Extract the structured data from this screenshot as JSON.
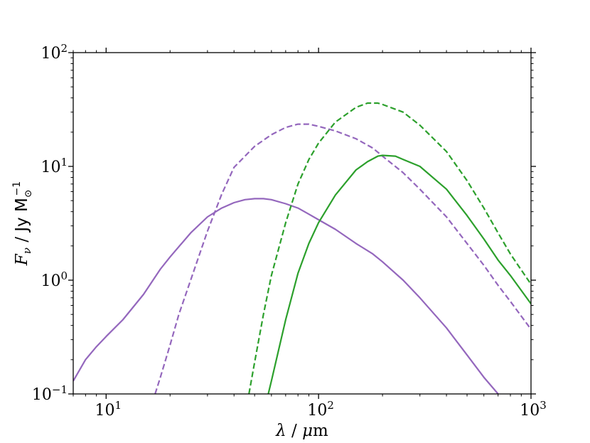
{
  "chart_data": {
    "type": "line",
    "xscale": "log",
    "yscale": "log",
    "xlim": [
      7,
      1000
    ],
    "ylim": [
      0.1,
      100
    ],
    "grid": false,
    "xlabel": {
      "lambda": "λ",
      "sep": " / ",
      "mu": "μ",
      "unit": "m"
    },
    "ylabel": {
      "F": "F",
      "nu": "ν",
      "sep": " / ",
      "unit": "Jy M",
      "sun": "⊙",
      "exp": "−1"
    },
    "xticks": [
      {
        "value": 10,
        "base": "10",
        "exp": "1"
      },
      {
        "value": 100,
        "base": "10",
        "exp": "2"
      },
      {
        "value": 1000,
        "base": "10",
        "exp": "3"
      }
    ],
    "yticks": [
      {
        "value": 0.1,
        "base": "10",
        "exp": "−1"
      },
      {
        "value": 1,
        "base": "10",
        "exp": "0"
      },
      {
        "value": 10,
        "base": "10",
        "exp": "1"
      },
      {
        "value": 100,
        "base": "10",
        "exp": "2"
      }
    ],
    "series": [
      {
        "color": "#9467bd",
        "style": "solid",
        "x": [
          7,
          8,
          9,
          10,
          12,
          15,
          18,
          20,
          25,
          30,
          35,
          40,
          45,
          50,
          55,
          60,
          70,
          80,
          90,
          100,
          120,
          150,
          180,
          200,
          250,
          300,
          400,
          500,
          600,
          700
        ],
        "y": [
          0.13,
          0.2,
          0.26,
          0.32,
          0.45,
          0.75,
          1.25,
          1.6,
          2.6,
          3.6,
          4.3,
          4.8,
          5.1,
          5.2,
          5.2,
          5.1,
          4.7,
          4.3,
          3.8,
          3.4,
          2.8,
          2.1,
          1.7,
          1.45,
          1.0,
          0.7,
          0.38,
          0.22,
          0.14,
          0.1
        ]
      },
      {
        "color": "#9467bd",
        "style": "dashed",
        "x": [
          17,
          18,
          20,
          22,
          25,
          30,
          35,
          40,
          50,
          60,
          70,
          80,
          90,
          100,
          120,
          150,
          180,
          200,
          250,
          300,
          400,
          500,
          600,
          700,
          800,
          1000
        ],
        "y": [
          0.1,
          0.14,
          0.27,
          0.5,
          1.0,
          2.7,
          5.7,
          9.8,
          15,
          19,
          22,
          23.5,
          23.5,
          22.5,
          20.5,
          17.5,
          14.5,
          12.3,
          8.8,
          6.3,
          3.6,
          2.1,
          1.35,
          0.9,
          0.65,
          0.37
        ]
      },
      {
        "color": "#2ca02c",
        "style": "dashed",
        "x": [
          47,
          50,
          55,
          60,
          70,
          80,
          90,
          100,
          120,
          150,
          170,
          190,
          200,
          250,
          300,
          400,
          500,
          600,
          700,
          800,
          1000
        ],
        "y": [
          0.1,
          0.19,
          0.5,
          1.1,
          3.2,
          7,
          11.5,
          16,
          24.5,
          33,
          36,
          36,
          35,
          30,
          23,
          13.5,
          7.5,
          4.3,
          2.6,
          1.7,
          0.92
        ]
      },
      {
        "color": "#2ca02c",
        "style": "solid",
        "x": [
          58,
          60,
          70,
          80,
          90,
          100,
          120,
          150,
          170,
          190,
          200,
          230,
          250,
          300,
          400,
          500,
          600,
          700,
          800,
          1000
        ],
        "y": [
          0.1,
          0.13,
          0.45,
          1.15,
          2.1,
          3.2,
          5.6,
          9.3,
          11,
          12.3,
          12.5,
          12.3,
          11.5,
          10,
          6.3,
          3.7,
          2.3,
          1.5,
          1.1,
          0.62
        ]
      }
    ]
  }
}
